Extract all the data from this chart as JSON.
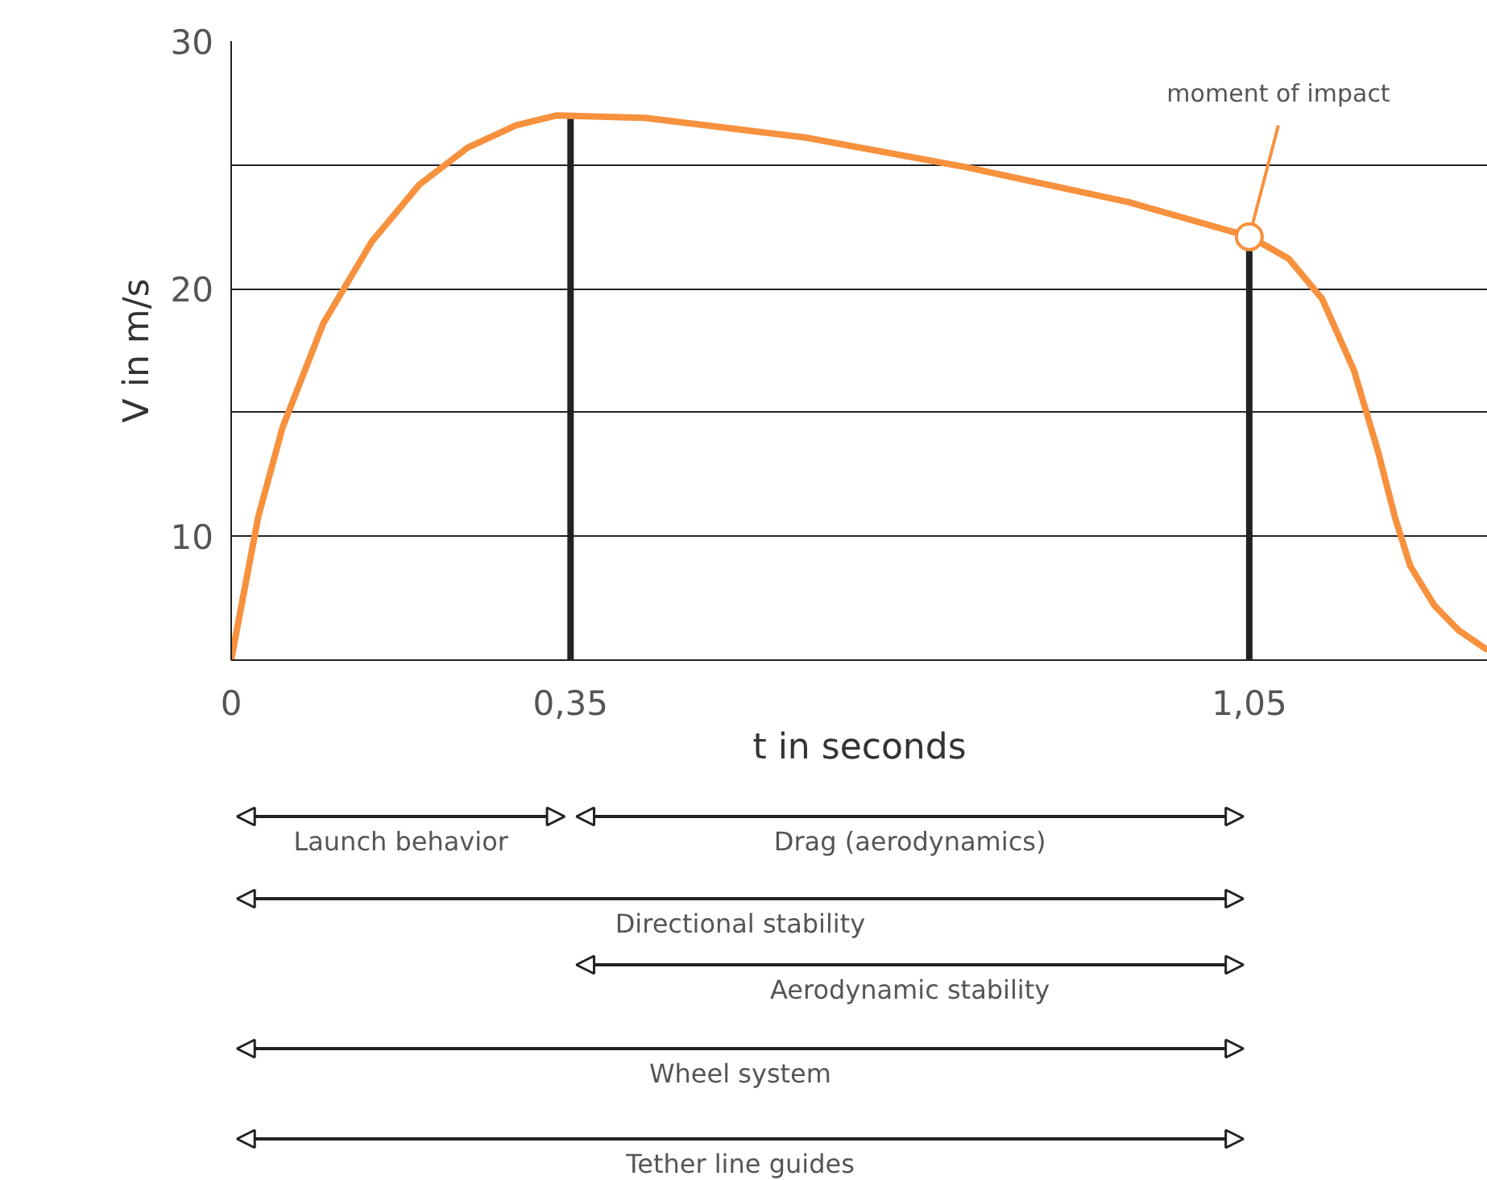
{
  "chart_data": {
    "type": "line",
    "xlabel": "t in seconds",
    "ylabel": "V in m/s",
    "x": [
      0,
      0.012,
      0.028,
      0.053,
      0.095,
      0.145,
      0.194,
      0.244,
      0.294,
      0.336,
      0.427,
      0.593,
      0.759,
      0.925,
      1.051,
      1.091,
      1.125,
      1.158,
      1.183,
      1.2,
      1.216,
      1.241,
      1.266,
      1.296
    ],
    "series": [
      {
        "color": "#f7913d",
        "values": [
          5,
          7.5,
          10.8,
          14.4,
          18.6,
          21.9,
          24.2,
          25.7,
          26.6,
          27,
          26.9,
          26.1,
          24.9,
          23.5,
          22.1,
          21.2,
          19.6,
          16.7,
          13.4,
          10.8,
          8.8,
          7.2,
          6.2,
          5.4
        ]
      }
    ],
    "xlim": [
      0,
      1.296
    ],
    "ylim": [
      5,
      30
    ],
    "xticks": [
      0,
      {
        "value": 0.35,
        "label": "0,35"
      },
      {
        "value": 1.05,
        "label": "1,05"
      }
    ],
    "yticks": [
      10,
      {
        "value": 15,
        "label": null
      },
      20,
      {
        "value": 25,
        "label": null
      },
      30
    ],
    "grid": "y",
    "marker": "none",
    "line_style": "solid",
    "ref_lines": [
      {
        "axis": "x",
        "value": 0.35,
        "color": "#222222"
      },
      {
        "axis": "x",
        "value": 1.05,
        "color": "#222222"
      }
    ],
    "annotations": [
      {
        "text": "moment of impact",
        "x": 1.05,
        "y": 22.1
      },
      "Launch behavior",
      "Drag (aerodynamics)",
      "Directional stability",
      "Aerodynamic stability",
      "Wheel system",
      "Tether line guides"
    ]
  }
}
